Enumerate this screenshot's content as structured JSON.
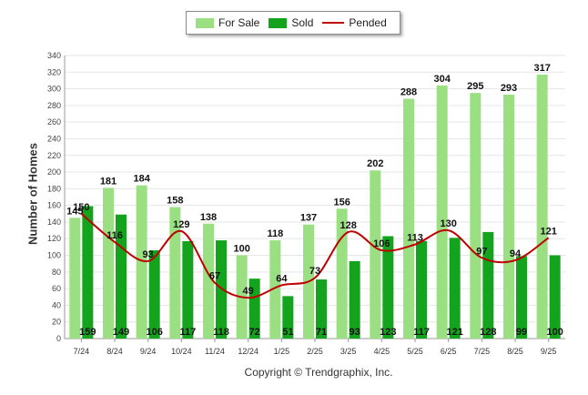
{
  "colors": {
    "for_sale": "#9adf81",
    "sold": "#13a31d",
    "pended": "#c00000"
  },
  "legend": {
    "for_sale": "For Sale",
    "sold": "Sold",
    "pended": "Pended"
  },
  "copyright": "Copyright © Trendgraphix, Inc.",
  "chart_data": {
    "type": "bar",
    "title": "",
    "xlabel": "",
    "ylabel": "Number of Homes",
    "ylim": [
      0,
      340
    ],
    "yticks": [
      0,
      20,
      40,
      60,
      80,
      100,
      120,
      140,
      160,
      180,
      200,
      220,
      240,
      260,
      280,
      300,
      320,
      340
    ],
    "grid": true,
    "legend_position": "top-center",
    "categories": [
      "7/24",
      "8/24",
      "9/24",
      "10/24",
      "11/24",
      "12/24",
      "1/25",
      "2/25",
      "3/25",
      "4/25",
      "5/25",
      "6/25",
      "7/25",
      "8/25",
      "9/25"
    ],
    "series": [
      {
        "name": "For Sale",
        "kind": "bar",
        "values": [
          145,
          181,
          184,
          158,
          138,
          100,
          118,
          137,
          156,
          202,
          288,
          304,
          295,
          293,
          317
        ]
      },
      {
        "name": "Sold",
        "kind": "bar",
        "values": [
          159,
          149,
          106,
          117,
          118,
          72,
          51,
          71,
          93,
          123,
          117,
          121,
          128,
          99,
          100
        ]
      },
      {
        "name": "Pended",
        "kind": "line",
        "values": [
          150,
          116,
          93,
          129,
          67,
          49,
          64,
          73,
          128,
          106,
          113,
          130,
          97,
          94,
          121
        ]
      }
    ]
  }
}
